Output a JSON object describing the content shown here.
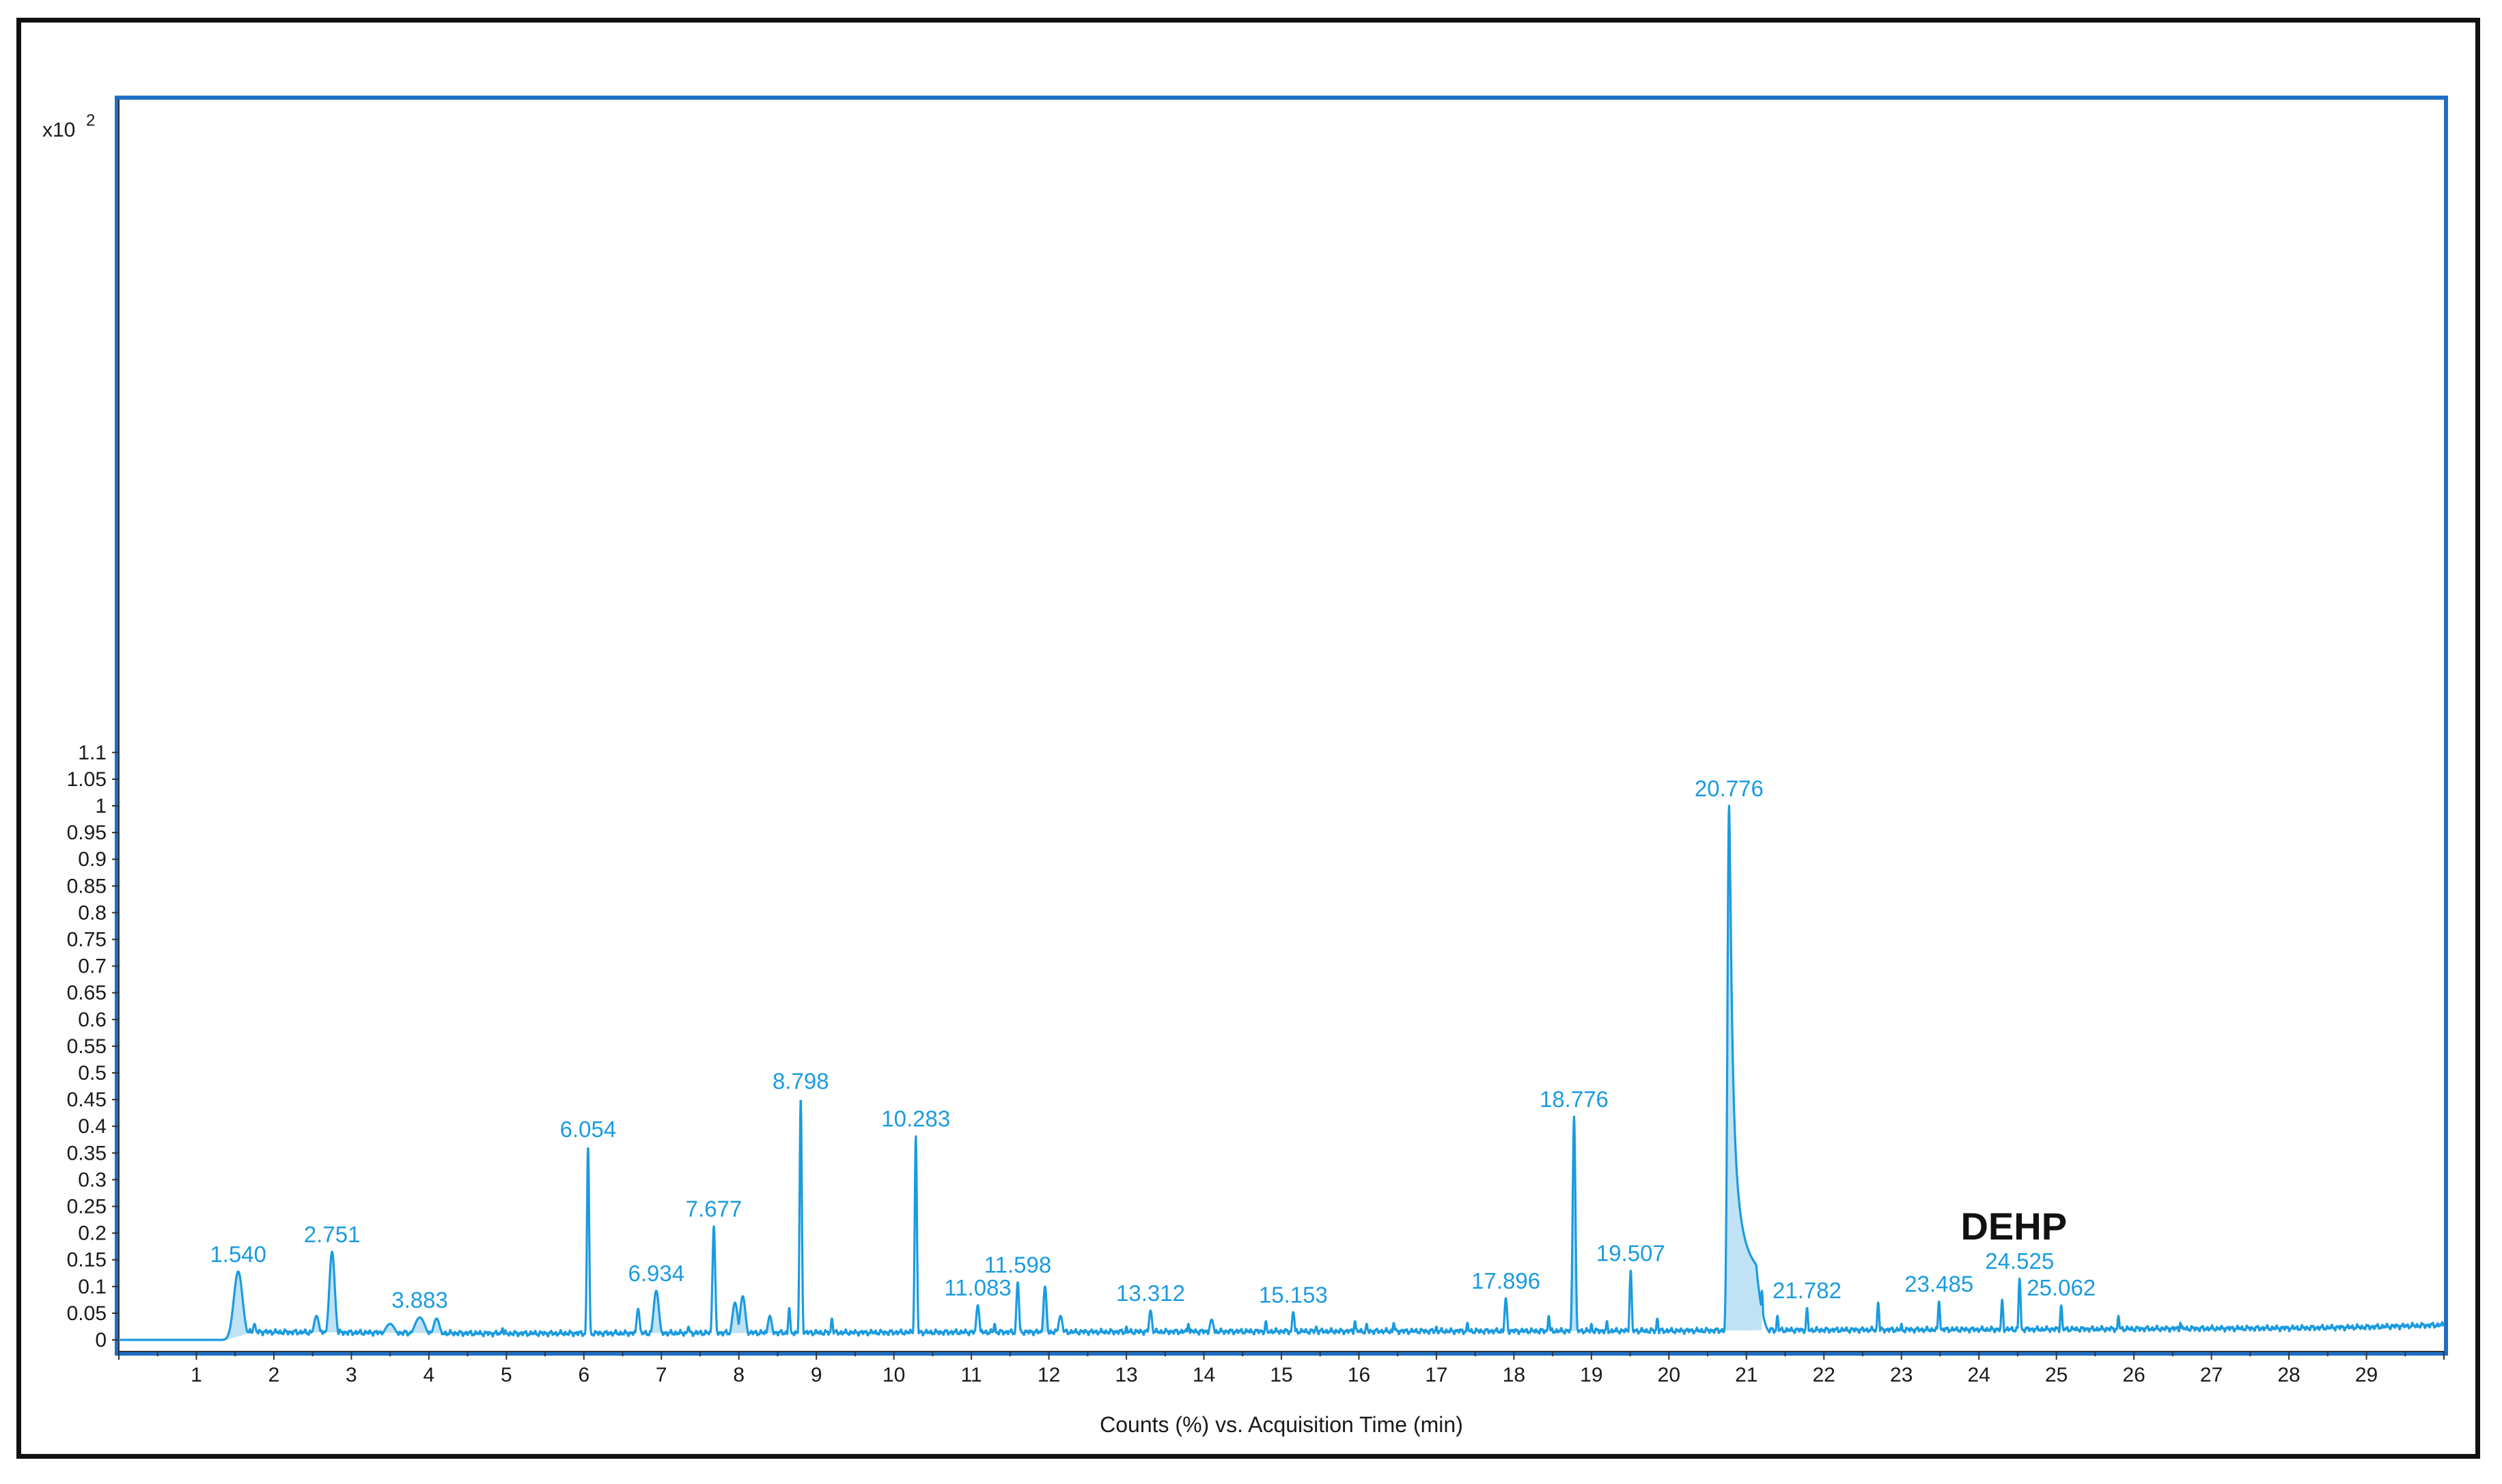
{
  "chart_data": {
    "type": "line",
    "title": "",
    "xlabel": "Counts (%) vs. Acquisition Time (min)",
    "ylabel": "",
    "y_multiplier": "x10",
    "y_multiplier_exp": "2",
    "xlim": [
      0,
      30
    ],
    "ylim": [
      -0.01,
      1.115
    ],
    "x_ticks": [
      1,
      2,
      3,
      4,
      5,
      6,
      7,
      8,
      9,
      10,
      11,
      12,
      13,
      14,
      15,
      16,
      17,
      18,
      19,
      20,
      21,
      22,
      23,
      24,
      25,
      26,
      27,
      28,
      29
    ],
    "y_ticks": [
      0,
      0.05,
      0.1,
      0.15,
      0.2,
      0.25,
      0.3,
      0.35,
      0.4,
      0.45,
      0.5,
      0.55,
      0.6,
      0.65,
      0.7,
      0.75,
      0.8,
      0.85,
      0.9,
      0.95,
      1,
      1.05,
      1.1
    ],
    "y_tick_labels": [
      "0",
      "0.05",
      "0.1",
      "0.15",
      "0.2",
      "0.25",
      "0.3",
      "0.35",
      "0.4",
      "0.45",
      "0.5",
      "0.55",
      "0.6",
      "0.65",
      "0.7",
      "0.75",
      "0.8",
      "0.85",
      "0.9",
      "0.95",
      "1",
      "1.05",
      "1.1"
    ],
    "series_color": "#1a9be0",
    "fill_color": "#bfe3f5",
    "baseline": [
      [
        0,
        0.0
      ],
      [
        1.4,
        -0.002
      ],
      [
        1.6,
        0.015
      ],
      [
        5,
        0.012
      ],
      [
        10,
        0.014
      ],
      [
        15,
        0.016
      ],
      [
        20,
        0.017
      ],
      [
        21,
        0.018
      ],
      [
        25,
        0.02
      ],
      [
        28,
        0.022
      ],
      [
        29,
        0.024
      ],
      [
        30,
        0.028
      ]
    ],
    "peaks": [
      {
        "x": 1.54,
        "y": 0.128,
        "label": "1.540",
        "w": 0.08,
        "shaded": true
      },
      {
        "x": 1.75,
        "y": 0.03,
        "w": 0.03
      },
      {
        "x": 2.55,
        "y": 0.045,
        "w": 0.05,
        "shaded": true
      },
      {
        "x": 2.751,
        "y": 0.165,
        "label": "2.751",
        "w": 0.05,
        "shaded": true
      },
      {
        "x": 3.5,
        "y": 0.03,
        "w": 0.1,
        "shaded": true
      },
      {
        "x": 3.883,
        "y": 0.042,
        "label": "3.883",
        "w": 0.1,
        "shaded": true
      },
      {
        "x": 4.1,
        "y": 0.04,
        "w": 0.06,
        "shaded": true
      },
      {
        "x": 4.95,
        "y": 0.022,
        "w": 0.02
      },
      {
        "x": 5.7,
        "y": 0.018,
        "w": 0.02
      },
      {
        "x": 6.054,
        "y": 0.362,
        "label": "6.054",
        "w": 0.02
      },
      {
        "x": 6.7,
        "y": 0.058,
        "w": 0.03
      },
      {
        "x": 6.934,
        "y": 0.092,
        "label": "6.934",
        "w": 0.05,
        "shaded": true
      },
      {
        "x": 7.35,
        "y": 0.025,
        "w": 0.02
      },
      {
        "x": 7.677,
        "y": 0.213,
        "label": "7.677",
        "w": 0.025
      },
      {
        "x": 7.95,
        "y": 0.07,
        "w": 0.05,
        "shaded": true
      },
      {
        "x": 8.05,
        "y": 0.082,
        "w": 0.05,
        "shaded": true
      },
      {
        "x": 8.4,
        "y": 0.045,
        "w": 0.04,
        "shaded": true
      },
      {
        "x": 8.65,
        "y": 0.06,
        "w": 0.02
      },
      {
        "x": 8.798,
        "y": 0.452,
        "label": "8.798",
        "w": 0.02
      },
      {
        "x": 9.2,
        "y": 0.04,
        "w": 0.02
      },
      {
        "x": 10.283,
        "y": 0.382,
        "label": "10.283",
        "w": 0.02
      },
      {
        "x": 11.083,
        "y": 0.065,
        "label": "11.083",
        "w": 0.03
      },
      {
        "x": 11.3,
        "y": 0.03,
        "w": 0.02
      },
      {
        "x": 11.598,
        "y": 0.108,
        "label": "11.598",
        "w": 0.025
      },
      {
        "x": 11.95,
        "y": 0.1,
        "w": 0.03,
        "shaded": true
      },
      {
        "x": 12.15,
        "y": 0.045,
        "w": 0.04
      },
      {
        "x": 13.0,
        "y": 0.025,
        "w": 0.02
      },
      {
        "x": 13.312,
        "y": 0.055,
        "label": "13.312",
        "w": 0.03
      },
      {
        "x": 13.8,
        "y": 0.03,
        "w": 0.02
      },
      {
        "x": 14.1,
        "y": 0.038,
        "w": 0.04
      },
      {
        "x": 14.8,
        "y": 0.035,
        "w": 0.02
      },
      {
        "x": 15.153,
        "y": 0.052,
        "label": "15.153",
        "w": 0.025
      },
      {
        "x": 15.45,
        "y": 0.025,
        "w": 0.02
      },
      {
        "x": 15.95,
        "y": 0.035,
        "w": 0.02
      },
      {
        "x": 16.1,
        "y": 0.03,
        "w": 0.02
      },
      {
        "x": 16.45,
        "y": 0.032,
        "w": 0.02
      },
      {
        "x": 17.0,
        "y": 0.025,
        "w": 0.02
      },
      {
        "x": 17.4,
        "y": 0.032,
        "w": 0.02
      },
      {
        "x": 17.896,
        "y": 0.078,
        "label": "17.896",
        "w": 0.025
      },
      {
        "x": 18.45,
        "y": 0.045,
        "w": 0.02
      },
      {
        "x": 18.776,
        "y": 0.418,
        "label": "18.776",
        "w": 0.025,
        "shaded": true
      },
      {
        "x": 19.0,
        "y": 0.03,
        "w": 0.02
      },
      {
        "x": 19.2,
        "y": 0.035,
        "w": 0.02
      },
      {
        "x": 19.507,
        "y": 0.13,
        "label": "19.507",
        "w": 0.02
      },
      {
        "x": 19.85,
        "y": 0.04,
        "w": 0.02
      },
      {
        "x": 20.776,
        "y": 1.0,
        "label": "20.776",
        "w": 0.03,
        "tail": 0.22,
        "shaded": true
      },
      {
        "x": 21.2,
        "y": 0.092,
        "w": 0.02
      },
      {
        "x": 21.4,
        "y": 0.045,
        "w": 0.02
      },
      {
        "x": 21.782,
        "y": 0.06,
        "label": "21.782",
        "w": 0.02
      },
      {
        "x": 22.7,
        "y": 0.07,
        "w": 0.02
      },
      {
        "x": 23.0,
        "y": 0.03,
        "w": 0.02
      },
      {
        "x": 23.485,
        "y": 0.072,
        "label": "23.485",
        "w": 0.02
      },
      {
        "x": 24.3,
        "y": 0.075,
        "w": 0.02
      },
      {
        "x": 24.525,
        "y": 0.115,
        "label": "24.525",
        "w": 0.02
      },
      {
        "x": 25.062,
        "y": 0.065,
        "label": "25.062",
        "w": 0.02
      },
      {
        "x": 25.8,
        "y": 0.045,
        "w": 0.02
      },
      {
        "x": 26.6,
        "y": 0.032,
        "w": 0.02
      }
    ],
    "annotations": [
      {
        "text": "DEHP",
        "x": 24.45,
        "y": 0.188
      }
    ]
  }
}
